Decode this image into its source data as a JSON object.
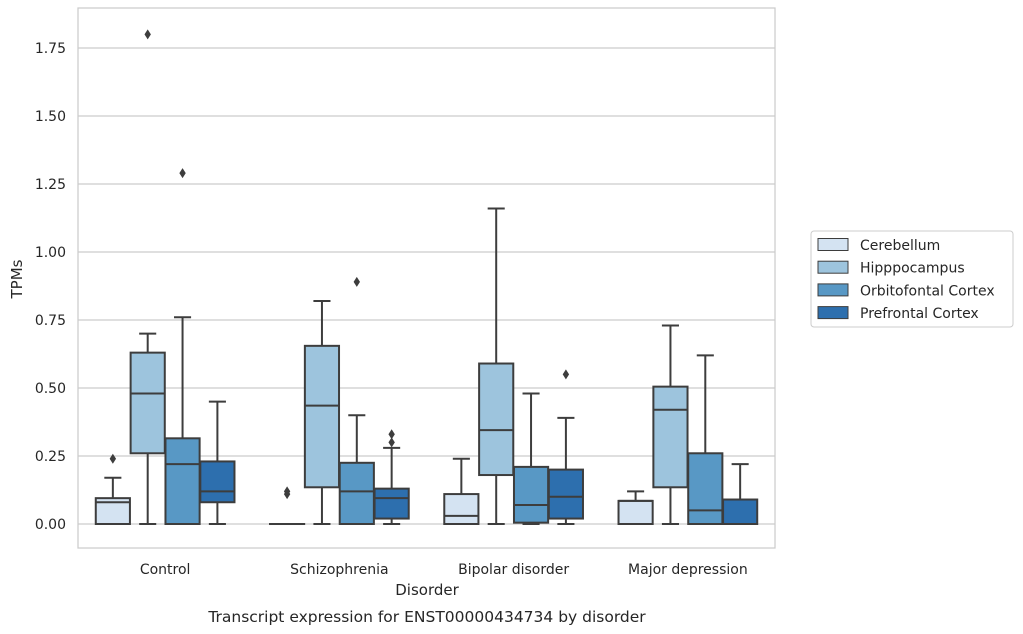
{
  "chart_data": {
    "type": "box",
    "title": "Transcript expression for ENST00000434734 by disorder",
    "xlabel": "Disorder",
    "ylabel": "TPMs",
    "ylim": [
      -0.087,
      1.89
    ],
    "y_ticks": [
      "0.00",
      "0.25",
      "0.50",
      "0.75",
      "1.00",
      "1.25",
      "1.50",
      "1.75"
    ],
    "y_tick_values": [
      0,
      0.25,
      0.5,
      0.75,
      1.0,
      1.25,
      1.5,
      1.75
    ],
    "grid": "horizontal",
    "legend_position": "right",
    "categories": [
      "Control",
      "Schizophrenia",
      "Bipolar disorder",
      "Major depression"
    ],
    "series": [
      {
        "name": "Cerebellum",
        "color": "#d4e3f2",
        "boxes": [
          {
            "whisker_low": 0,
            "q1": 0,
            "median": 0.08,
            "q3": 0.095,
            "whisker_high": 0.17,
            "outliers": [
              0.24
            ]
          },
          {
            "whisker_low": 0,
            "q1": 0,
            "median": 0,
            "q3": 0,
            "whisker_high": 0,
            "outliers": [
              0.11,
              0.12
            ]
          },
          {
            "whisker_low": 0,
            "q1": 0,
            "median": 0.03,
            "q3": 0.11,
            "whisker_high": 0.24,
            "outliers": []
          },
          {
            "whisker_low": 0,
            "q1": 0,
            "median": 0.085,
            "q3": 0.085,
            "whisker_high": 0.12,
            "outliers": []
          }
        ]
      },
      {
        "name": "Hipppocampus",
        "color": "#9dc4dd",
        "boxes": [
          {
            "whisker_low": 0,
            "q1": 0.26,
            "median": 0.48,
            "q3": 0.63,
            "whisker_high": 0.7,
            "outliers": [
              1.8
            ]
          },
          {
            "whisker_low": 0,
            "q1": 0.135,
            "median": 0.435,
            "q3": 0.655,
            "whisker_high": 0.82,
            "outliers": []
          },
          {
            "whisker_low": 0,
            "q1": 0.18,
            "median": 0.345,
            "q3": 0.59,
            "whisker_high": 1.16,
            "outliers": []
          },
          {
            "whisker_low": 0,
            "q1": 0.135,
            "median": 0.42,
            "q3": 0.505,
            "whisker_high": 0.73,
            "outliers": []
          }
        ]
      },
      {
        "name": "Orbitofontal Cortex",
        "color": "#5898c5",
        "boxes": [
          {
            "whisker_low": 0,
            "q1": 0,
            "median": 0.22,
            "q3": 0.315,
            "whisker_high": 0.76,
            "outliers": [
              1.29
            ]
          },
          {
            "whisker_low": 0,
            "q1": 0,
            "median": 0.12,
            "q3": 0.225,
            "whisker_high": 0.4,
            "outliers": [
              0.89
            ]
          },
          {
            "whisker_low": 0,
            "q1": 0.005,
            "median": 0.07,
            "q3": 0.21,
            "whisker_high": 0.48,
            "outliers": []
          },
          {
            "whisker_low": 0,
            "q1": 0,
            "median": 0.05,
            "q3": 0.26,
            "whisker_high": 0.62,
            "outliers": []
          }
        ]
      },
      {
        "name": "Prefrontal Cortex",
        "color": "#2d6fae",
        "boxes": [
          {
            "whisker_low": 0,
            "q1": 0.08,
            "median": 0.12,
            "q3": 0.23,
            "whisker_high": 0.45,
            "outliers": []
          },
          {
            "whisker_low": 0,
            "q1": 0.02,
            "median": 0.095,
            "q3": 0.13,
            "whisker_high": 0.28,
            "outliers": [
              0.3,
              0.33
            ]
          },
          {
            "whisker_low": 0,
            "q1": 0.02,
            "median": 0.1,
            "q3": 0.2,
            "whisker_high": 0.39,
            "outliers": [
              0.55
            ]
          },
          {
            "whisker_low": 0,
            "q1": 0,
            "median": 0,
            "q3": 0.09,
            "whisker_high": 0.22,
            "outliers": []
          }
        ]
      }
    ]
  }
}
